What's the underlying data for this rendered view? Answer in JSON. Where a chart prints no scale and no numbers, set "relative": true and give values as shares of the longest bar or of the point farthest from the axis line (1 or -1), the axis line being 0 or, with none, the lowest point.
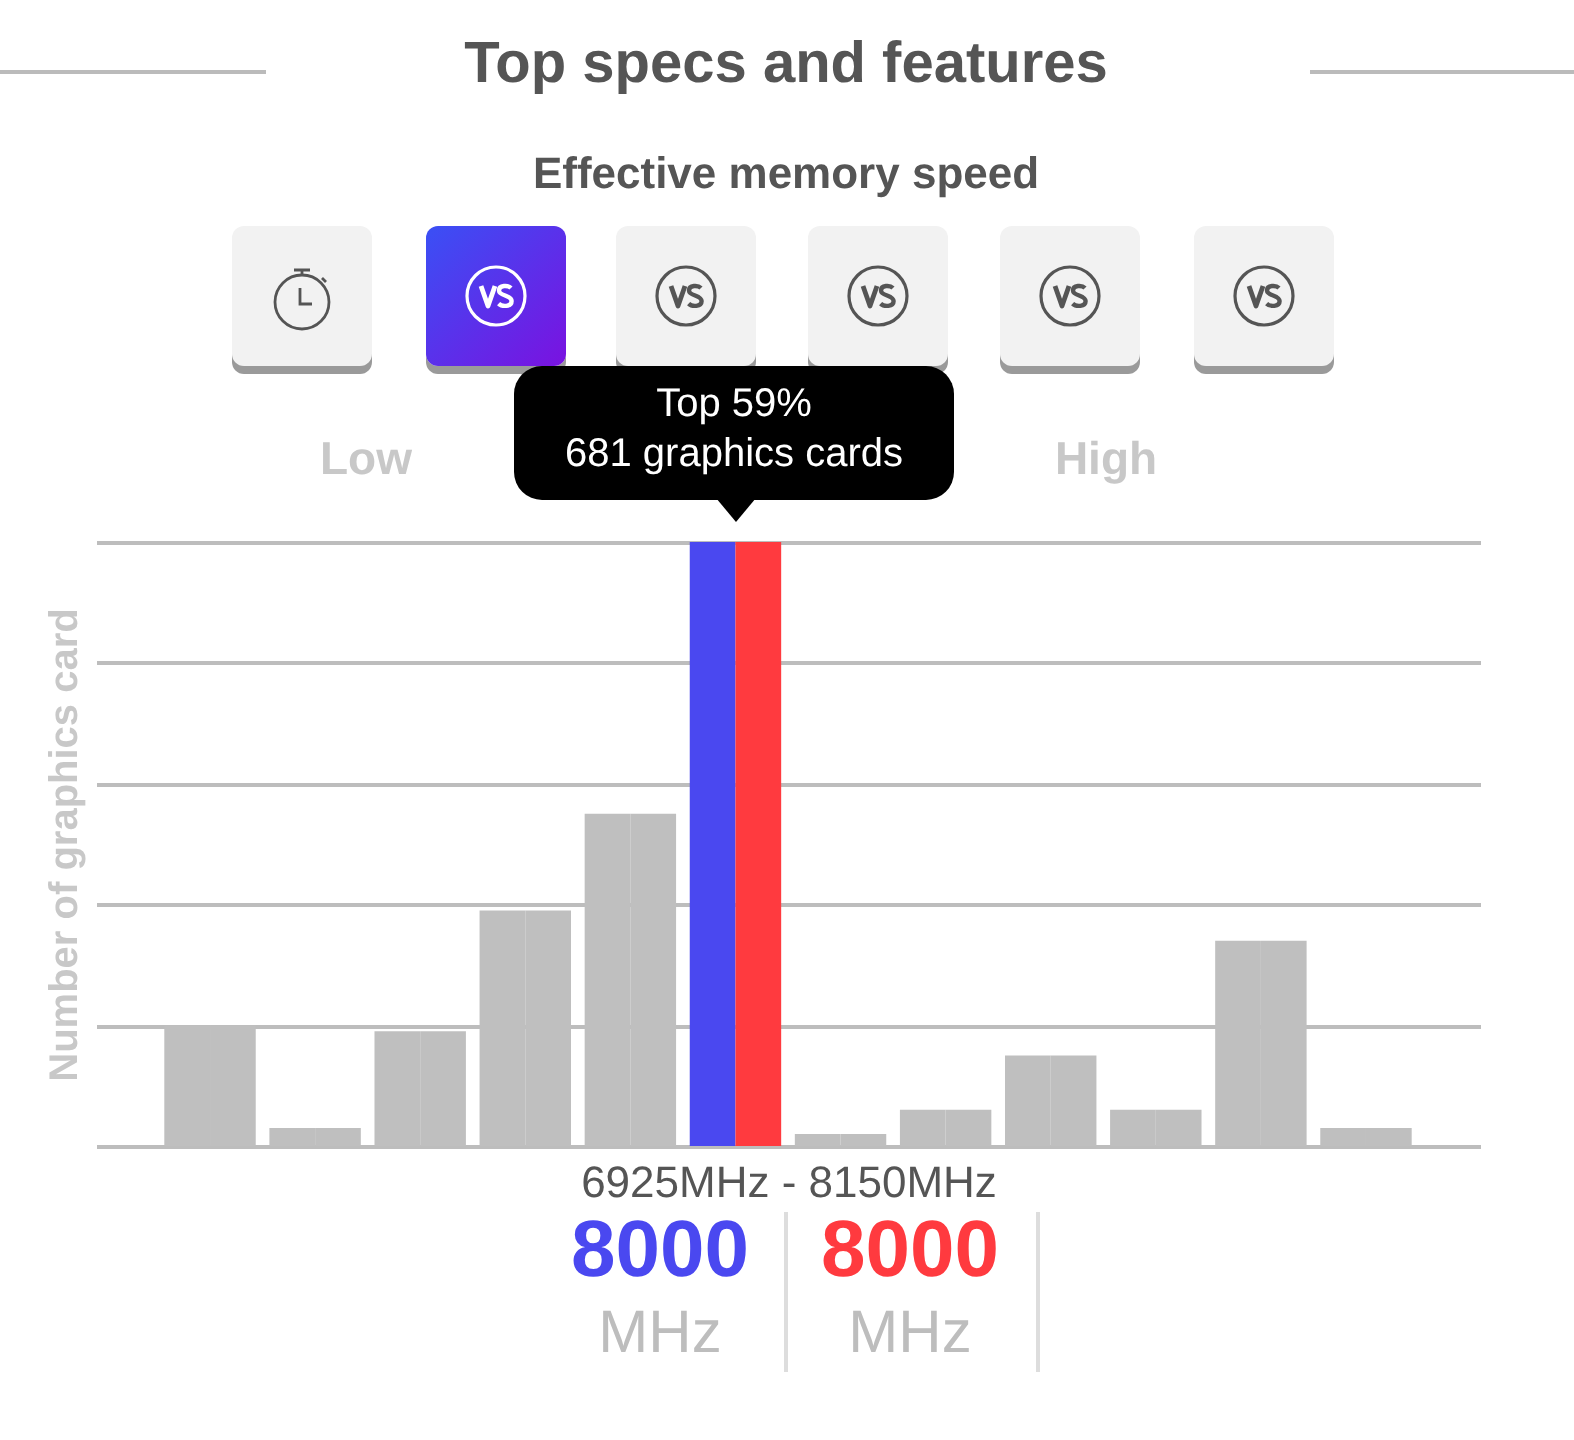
{
  "chart_data": {
    "type": "bar",
    "title": "Top specs and features",
    "subtitle": "Effective memory speed",
    "xlabel": "6925MHz - 8150MHz",
    "ylabel": "Number of graphics card",
    "annotations": [
      "Low",
      "High",
      "Top 59%",
      "681 graphics cards",
      "8000",
      "MHz",
      "8000",
      "MHz"
    ],
    "categories": [
      null,
      null,
      null,
      null,
      null,
      null,
      null,
      null,
      null,
      null,
      null,
      null
    ],
    "series": [
      {
        "colors": [
          "#bfbfbf",
          "#bfbfbf",
          "#bfbfbf",
          "#bfbfbf",
          "#bfbfbf",
          "#4a48f0",
          "#bfbfbf",
          "#bfbfbf",
          "#bfbfbf",
          "#bfbfbf",
          "#bfbfbf",
          "#bfbfbf"
        ],
        "values": [
          0.2,
          0.03,
          0.19,
          0.39,
          0.55,
          1,
          0.02,
          0.06,
          0.15,
          0.06,
          0.34,
          0.03
        ]
      },
      {
        "colors": [
          "#bfbfbf",
          "#bfbfbf",
          "#bfbfbf",
          "#bfbfbf",
          "#bfbfbf",
          "#ff3a3f",
          "#bfbfbf",
          "#bfbfbf",
          "#bfbfbf",
          "#bfbfbf",
          "#bfbfbf",
          "#bfbfbf"
        ],
        "values": [
          0.2,
          0.03,
          0.19,
          0.39,
          0.55,
          1,
          0.02,
          0.06,
          0.15,
          0.06,
          0.34,
          0.03
        ]
      }
    ],
    "relative": true,
    "grid": "y"
  }
}
